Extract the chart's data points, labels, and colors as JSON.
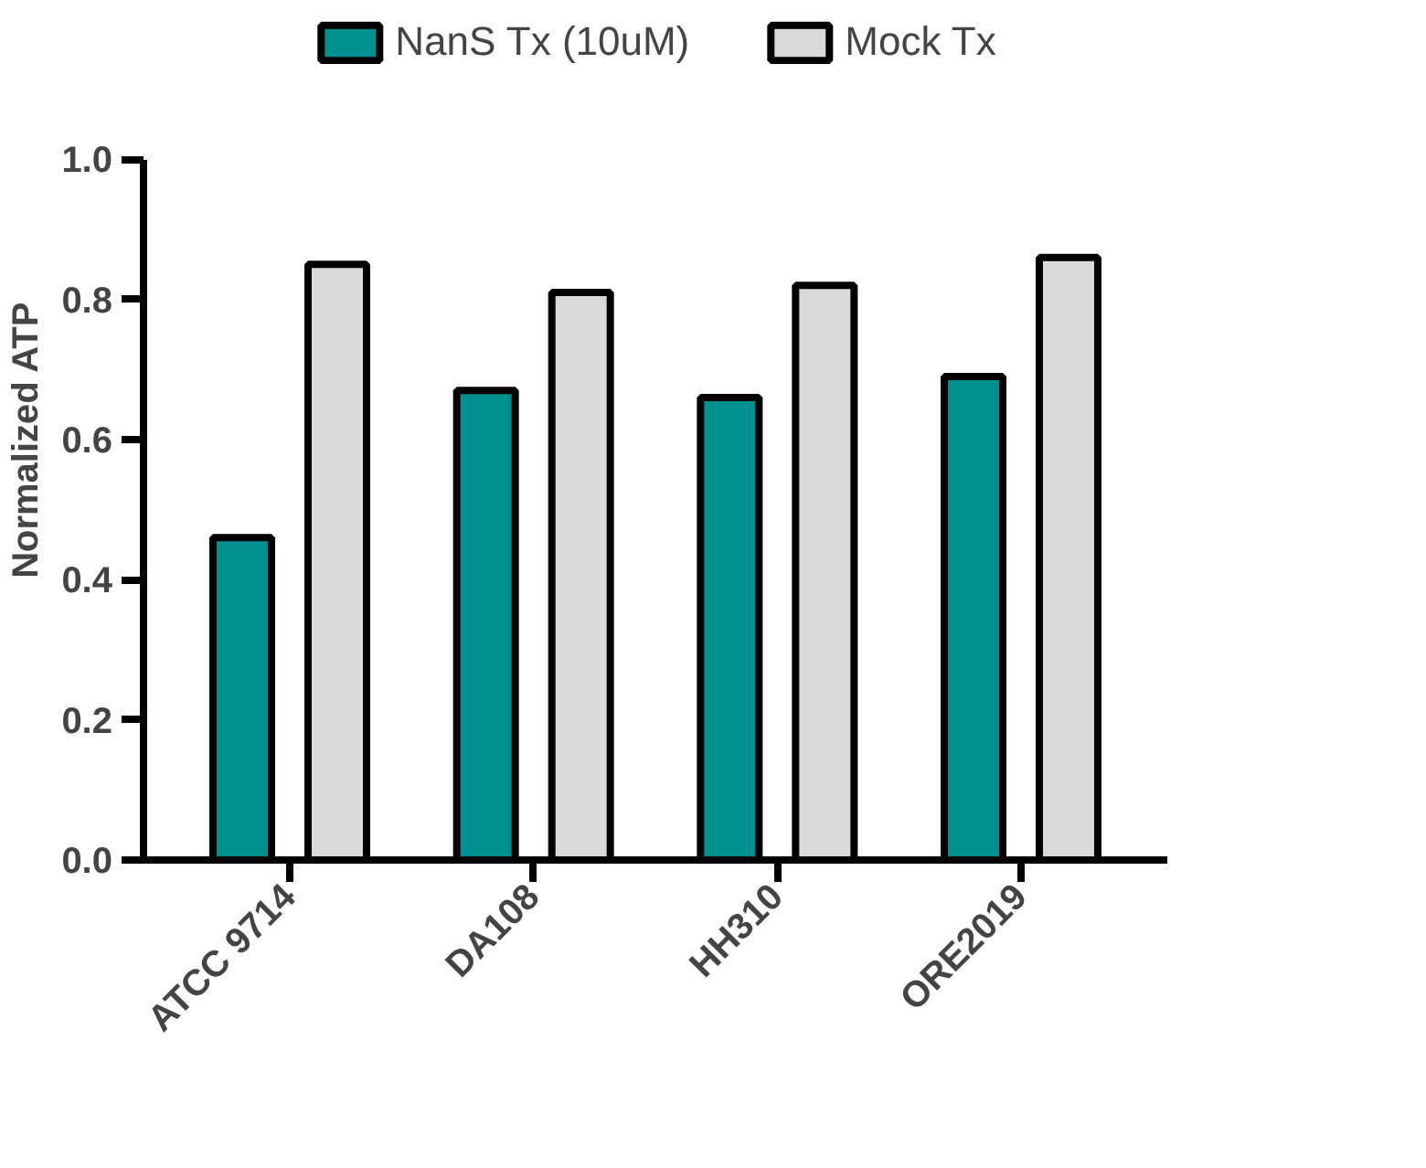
{
  "chart_data": {
    "type": "bar",
    "ylabel": "Normalized ATP",
    "categories": [
      "ATCC 9714",
      "DA108",
      "HH310",
      "ORE2019"
    ],
    "series": [
      {
        "name": "NanS Tx (10uM)",
        "color": "#009090",
        "values": [
          0.46,
          0.67,
          0.66,
          0.69
        ]
      },
      {
        "name": "Mock Tx",
        "color": "#d9d9d9",
        "values": [
          0.85,
          0.81,
          0.82,
          0.86
        ]
      }
    ],
    "ylim": [
      0,
      1.0
    ],
    "yticks": [
      {
        "value": 0,
        "label": "0.0"
      },
      {
        "value": 0.2,
        "label": "0.2"
      },
      {
        "value": 0.4,
        "label": "0.4"
      },
      {
        "value": 0.6,
        "label": "0.6"
      },
      {
        "value": 0.8,
        "label": "0.8"
      },
      {
        "value": 1.0,
        "label": "1.0"
      }
    ],
    "grid": false,
    "legend": "top"
  }
}
